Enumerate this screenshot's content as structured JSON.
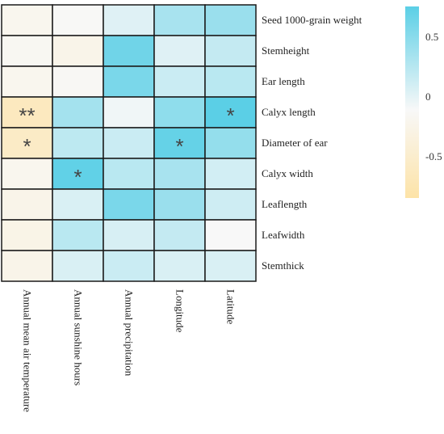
{
  "chart_data": {
    "type": "heatmap",
    "rows": [
      "Seed 1000-grain weight",
      "Stemheight",
      "Ear length",
      "Calyx length",
      "Diameter of ear",
      "Calyx width",
      "Leaflength",
      "Leafwidth",
      "Stemthick"
    ],
    "columns": [
      "Annual mean air temperature",
      "Annual sunshine hours",
      "Annual precipitation",
      "Longitude",
      "Latitude"
    ],
    "values": [
      [
        -0.1,
        -0.02,
        0.12,
        0.38,
        0.45
      ],
      [
        -0.06,
        -0.16,
        0.65,
        0.12,
        0.25
      ],
      [
        -0.1,
        -0.04,
        0.6,
        0.22,
        0.3
      ],
      [
        -0.6,
        0.4,
        0.04,
        0.5,
        0.75
      ],
      [
        -0.52,
        0.28,
        0.22,
        0.7,
        0.48
      ],
      [
        -0.1,
        0.72,
        0.3,
        0.38,
        0.18
      ],
      [
        -0.16,
        0.15,
        0.6,
        0.45,
        0.2
      ],
      [
        -0.18,
        0.3,
        0.16,
        0.25,
        0.0
      ],
      [
        -0.16,
        0.15,
        0.22,
        0.15,
        0.15
      ]
    ],
    "significance": [
      [
        "",
        "",
        "",
        "",
        ""
      ],
      [
        "",
        "",
        "",
        "",
        ""
      ],
      [
        "",
        "",
        "",
        "",
        ""
      ],
      [
        "**",
        "",
        "",
        "",
        "*"
      ],
      [
        "*",
        "",
        "",
        "*",
        ""
      ],
      [
        "",
        "*",
        "",
        "",
        ""
      ],
      [
        "",
        "",
        "",
        "",
        ""
      ],
      [
        "",
        "",
        "",
        "",
        ""
      ],
      [
        "",
        "",
        "",
        "",
        ""
      ]
    ],
    "colorbar": {
      "min": -0.85,
      "max": 0.75,
      "ticks": [
        0.5,
        0,
        -0.5
      ],
      "tick_labels": [
        "0.5",
        "0",
        "-0.5"
      ],
      "color_low": "#fde3a7",
      "color_mid": "#f8f8f8",
      "color_high": "#5bcfe6"
    },
    "legend_position": "top-right"
  }
}
